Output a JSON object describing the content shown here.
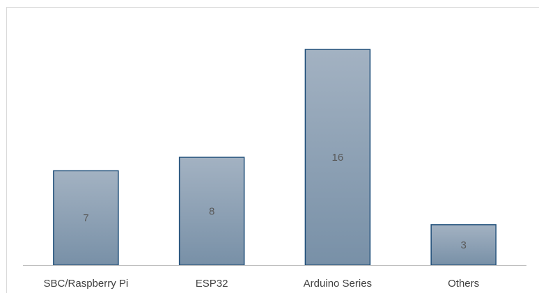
{
  "chart_data": {
    "type": "bar",
    "title": "",
    "xlabel": "",
    "ylabel": "",
    "categories": [
      "SBC/Raspberry Pi",
      "ESP32",
      "Arduino Series",
      "Others"
    ],
    "values": [
      7,
      8,
      16,
      3
    ],
    "ylim": [
      0,
      16
    ],
    "grid": false,
    "legend": "none",
    "colors": {
      "bar_top": "#a3b2c2",
      "bar_bottom": "#7890a7",
      "bar_border": "#1f4e79",
      "axis": "#bfbfbf",
      "frame": "#d9d9d9",
      "value_label": "#595959",
      "category_label": "#404040"
    }
  }
}
